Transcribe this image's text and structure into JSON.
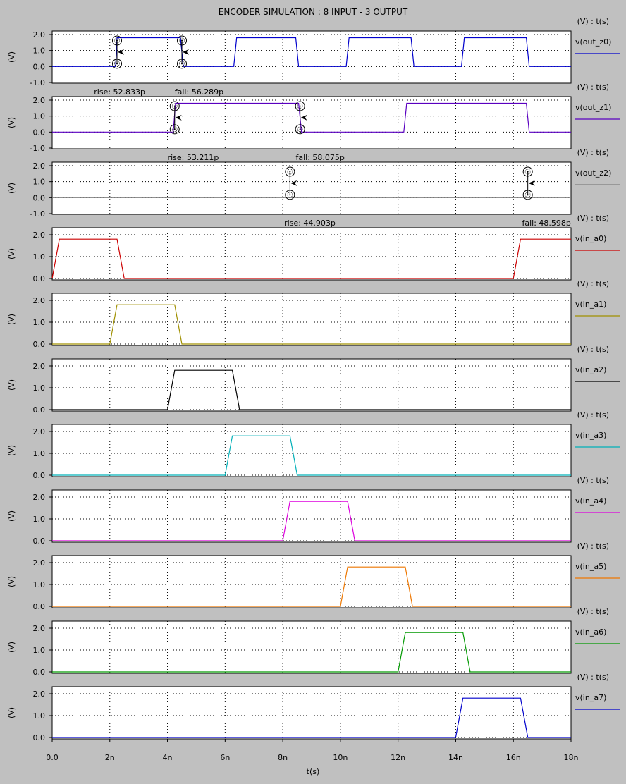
{
  "title": "ENCODER SIMULATION : 8 INPUT - 3 OUTPUT",
  "xlabel": "t(s)",
  "ylabel": "(V)",
  "legend_header": "(V) : t(s)",
  "x_ticks": [
    "0.0",
    "2n",
    "4n",
    "6n",
    "8n",
    "10n",
    "12n",
    "14n",
    "16n",
    "18n"
  ],
  "chart_data": [
    {
      "type": "line",
      "name": "v(out_z0)",
      "color": "#0000cc",
      "xlim": [
        0,
        18
      ],
      "ylim": [
        -1,
        2
      ],
      "y_ticks": [
        "2.0",
        "1.0",
        "0.0",
        "-1.0"
      ],
      "x": [
        0,
        2.2,
        2.25,
        4.45,
        4.55,
        6.3,
        6.4,
        8.45,
        8.55,
        10.2,
        10.3,
        12.45,
        12.55,
        14.2,
        14.3,
        16.45,
        16.55,
        18
      ],
      "y": [
        0,
        0,
        1.8,
        1.8,
        0,
        0,
        1.8,
        1.8,
        0,
        0,
        1.8,
        1.8,
        0,
        0,
        1.8,
        1.8,
        0,
        0
      ],
      "cursors": [
        {
          "t": 2.25,
          "dir": "rise"
        },
        {
          "t": 4.5,
          "dir": "fall"
        }
      ],
      "annotations": [
        {
          "text": "rise: 52.833p",
          "t": 1.45
        },
        {
          "text": "fall: 56.289p",
          "t": 4.25
        }
      ]
    },
    {
      "type": "line",
      "name": "v(out_z1)",
      "color": "#5a00c0",
      "xlim": [
        0,
        18
      ],
      "ylim": [
        -1,
        2
      ],
      "y_ticks": [
        "2.0",
        "1.0",
        "0.0",
        "-1.0"
      ],
      "x": [
        0,
        4.2,
        4.28,
        8.55,
        8.65,
        12.2,
        12.3,
        16.45,
        16.55,
        18
      ],
      "y": [
        0,
        0,
        1.8,
        1.8,
        0,
        0,
        1.8,
        1.8,
        0,
        0
      ],
      "cursors": [
        {
          "t": 4.25,
          "dir": "rise"
        },
        {
          "t": 8.6,
          "dir": "fall"
        }
      ],
      "annotations": [
        {
          "text": "rise: 53.211p",
          "t": 4.0
        },
        {
          "text": "fall: 58.075p",
          "t": 8.45
        }
      ]
    },
    {
      "type": "line",
      "name": "v(out_z2)",
      "color": "#808080",
      "xlim": [
        0,
        18
      ],
      "ylim": [
        -1,
        2
      ],
      "y_ticks": [
        "2.0",
        "1.0",
        "0.0",
        "-1.0"
      ],
      "x": [
        0,
        18
      ],
      "y": [
        0,
        0
      ],
      "cursors": [
        {
          "t": 8.25,
          "dir": "rise"
        },
        {
          "t": 16.5,
          "dir": "fall"
        }
      ],
      "annotations": [
        {
          "text": "rise: 44.903p",
          "t": 8.05
        },
        {
          "text": "fall: 48.598p",
          "t": 16.3
        }
      ]
    },
    {
      "type": "line",
      "name": "v(in_a0)",
      "color": "#cc0000",
      "xlim": [
        0,
        18
      ],
      "ylim": [
        0,
        2
      ],
      "y_ticks": [
        "2.0",
        "1.0",
        "0.0"
      ],
      "x": [
        0,
        0.25,
        2.25,
        2.5,
        16.0,
        16.25,
        18
      ],
      "y": [
        0,
        1.8,
        1.8,
        0,
        0,
        1.8,
        1.8
      ]
    },
    {
      "type": "line",
      "name": "v(in_a1)",
      "color": "#a09000",
      "xlim": [
        0,
        18
      ],
      "ylim": [
        0,
        2
      ],
      "y_ticks": [
        "2.0",
        "1.0",
        "0.0"
      ],
      "x": [
        0,
        2.0,
        2.25,
        4.25,
        4.5,
        18
      ],
      "y": [
        0,
        0,
        1.8,
        1.8,
        0,
        0
      ]
    },
    {
      "type": "line",
      "name": "v(in_a2)",
      "color": "#000000",
      "xlim": [
        0,
        18
      ],
      "ylim": [
        0,
        2
      ],
      "y_ticks": [
        "2.0",
        "1.0",
        "0.0"
      ],
      "x": [
        0,
        4.0,
        4.25,
        6.25,
        6.5,
        18
      ],
      "y": [
        0,
        0,
        1.8,
        1.8,
        0,
        0
      ]
    },
    {
      "type": "line",
      "name": "v(in_a3)",
      "color": "#00b0b8",
      "xlim": [
        0,
        18
      ],
      "ylim": [
        0,
        2
      ],
      "y_ticks": [
        "2.0",
        "1.0",
        "0.0"
      ],
      "x": [
        0,
        6.0,
        6.25,
        8.25,
        8.5,
        18
      ],
      "y": [
        0,
        0,
        1.8,
        1.8,
        0,
        0
      ]
    },
    {
      "type": "line",
      "name": "v(in_a4)",
      "color": "#dd00dd",
      "xlim": [
        0,
        18
      ],
      "ylim": [
        0,
        2
      ],
      "y_ticks": [
        "2.0",
        "1.0",
        "0.0"
      ],
      "x": [
        0,
        8.0,
        8.25,
        10.25,
        10.5,
        18
      ],
      "y": [
        0,
        0,
        1.8,
        1.8,
        0,
        0
      ]
    },
    {
      "type": "line",
      "name": "v(in_a5)",
      "color": "#ee7700",
      "xlim": [
        0,
        18
      ],
      "ylim": [
        0,
        2
      ],
      "y_ticks": [
        "2.0",
        "1.0",
        "0.0"
      ],
      "x": [
        0,
        10.0,
        10.25,
        12.25,
        12.5,
        18
      ],
      "y": [
        0,
        0,
        1.8,
        1.8,
        0,
        0
      ]
    },
    {
      "type": "line",
      "name": "v(in_a6)",
      "color": "#009900",
      "xlim": [
        0,
        18
      ],
      "ylim": [
        0,
        2
      ],
      "y_ticks": [
        "2.0",
        "1.0",
        "0.0"
      ],
      "x": [
        0,
        12.0,
        12.25,
        14.25,
        14.5,
        18
      ],
      "y": [
        0,
        0,
        1.8,
        1.8,
        0,
        0
      ]
    },
    {
      "type": "line",
      "name": "v(in_a7)",
      "color": "#0000cc",
      "xlim": [
        0,
        18
      ],
      "ylim": [
        0,
        2
      ],
      "y_ticks": [
        "2.0",
        "1.0",
        "0.0"
      ],
      "x": [
        0,
        14.0,
        14.25,
        16.25,
        16.5,
        18
      ],
      "y": [
        0,
        0,
        1.8,
        1.8,
        0,
        0
      ]
    }
  ]
}
